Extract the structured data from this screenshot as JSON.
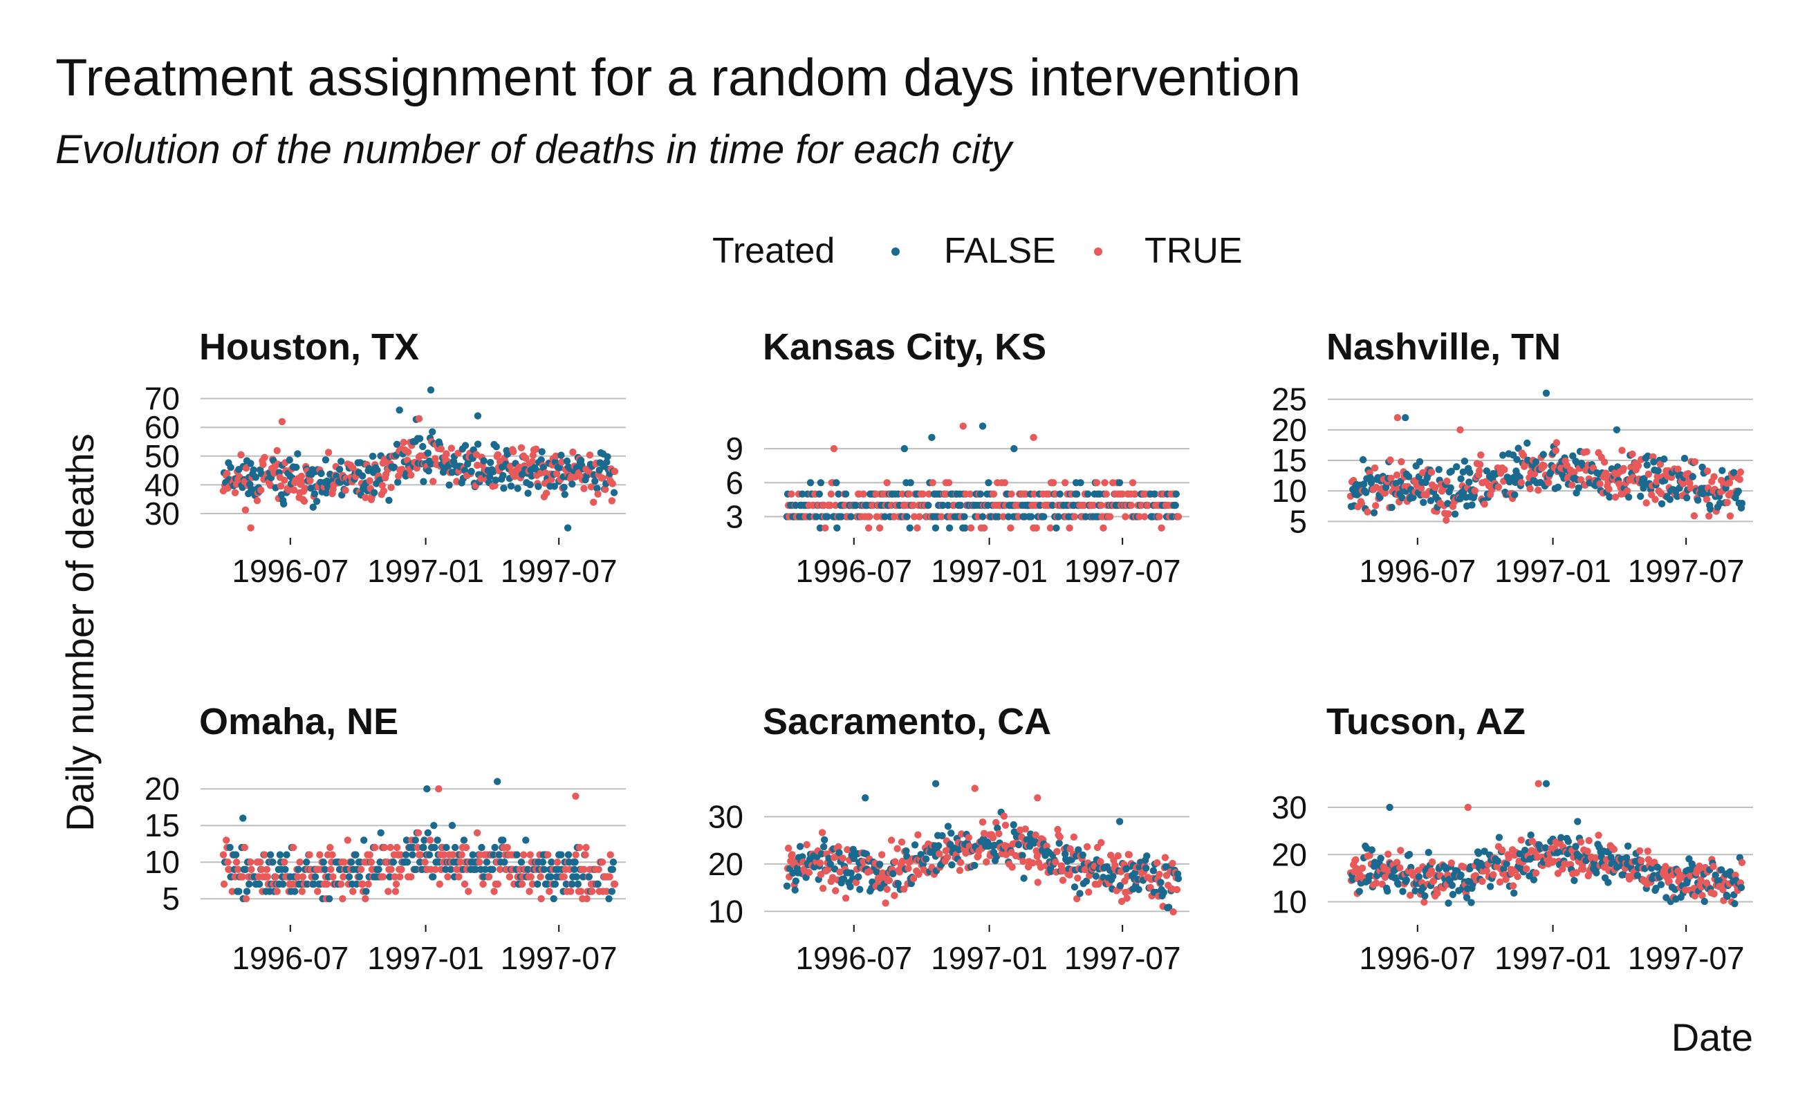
{
  "title": "Treatment assignment for a random days intervention",
  "subtitle": "Evolution of the number of deaths in time for each city",
  "ylabel": "Daily number of deaths",
  "xlabel": "Date",
  "legend": {
    "title": "Treated",
    "position": "top",
    "entries": [
      {
        "label": "FALSE",
        "color": "#1a6a90"
      },
      {
        "label": "TRUE",
        "color": "#e85a5a"
      }
    ]
  },
  "colors": {
    "FALSE": "#1a6a90",
    "TRUE": "#e85a5a",
    "grid": "#bdbdbd"
  },
  "chart_data": [
    {
      "type": "scatter",
      "panel": "Houston, TX",
      "x_range": [
        "1996-03-01",
        "1997-09-30"
      ],
      "x_ticks": [
        "1996-07",
        "1997-01",
        "1997-07"
      ],
      "ylim": [
        23,
        74
      ],
      "y_ticks": [
        30,
        40,
        50,
        60,
        70
      ],
      "level": [
        [
          0,
          43
        ],
        [
          0.25,
          40
        ],
        [
          0.4,
          43
        ],
        [
          0.5,
          52
        ],
        [
          0.6,
          47
        ],
        [
          0.75,
          45
        ],
        [
          1,
          43
        ]
      ],
      "spread": 6,
      "outliers": [
        [
          0.53,
          73
        ],
        [
          0.5,
          63
        ],
        [
          0.45,
          66
        ],
        [
          0.15,
          62
        ],
        [
          0.88,
          25
        ],
        [
          0.07,
          25
        ],
        [
          0.65,
          64
        ]
      ],
      "seed": 11
    },
    {
      "type": "scatter",
      "panel": "Kansas City, KS",
      "x_range": [
        "1996-03-01",
        "1997-09-30"
      ],
      "x_ticks": [
        "1996-07",
        "1997-01",
        "1997-07"
      ],
      "ylim": [
        1.5,
        12
      ],
      "y_ticks": [
        3,
        6,
        9
      ],
      "level": [
        [
          0,
          4
        ],
        [
          1,
          4
        ]
      ],
      "spread": 1.3,
      "integer": true,
      "min": 2,
      "outliers": [
        [
          0.5,
          11
        ],
        [
          0.45,
          11
        ],
        [
          0.37,
          10
        ],
        [
          0.63,
          10
        ],
        [
          0.3,
          9
        ],
        [
          0.12,
          9
        ],
        [
          0.58,
          9
        ]
      ],
      "seed": 23
    },
    {
      "type": "scatter",
      "panel": "Nashville, TN",
      "x_range": [
        "1996-03-01",
        "1997-09-30"
      ],
      "x_ticks": [
        "1996-07",
        "1997-01",
        "1997-07"
      ],
      "ylim": [
        3,
        27
      ],
      "y_ticks": [
        5,
        10,
        15,
        20,
        25
      ],
      "level": [
        [
          0,
          11
        ],
        [
          0.3,
          10
        ],
        [
          0.5,
          14
        ],
        [
          0.75,
          12
        ],
        [
          1,
          10
        ]
      ],
      "spread": 3,
      "min": 4,
      "outliers": [
        [
          0.5,
          26
        ],
        [
          0.12,
          22
        ],
        [
          0.14,
          22
        ],
        [
          0.28,
          20
        ],
        [
          0.68,
          20
        ]
      ],
      "seed": 37
    },
    {
      "type": "scatter",
      "panel": "Omaha, NE",
      "x_range": [
        "1996-03-01",
        "1997-09-30"
      ],
      "x_ticks": [
        "1996-07",
        "1997-01",
        "1997-07"
      ],
      "ylim": [
        2,
        22
      ],
      "y_ticks": [
        5,
        10,
        15,
        20
      ],
      "level": [
        [
          0,
          9
        ],
        [
          0.3,
          8
        ],
        [
          0.5,
          11
        ],
        [
          0.75,
          9
        ],
        [
          1,
          8
        ]
      ],
      "spread": 2.5,
      "integer": true,
      "min": 3,
      "outliers": [
        [
          0.52,
          20
        ],
        [
          0.55,
          20
        ],
        [
          0.7,
          21
        ],
        [
          0.9,
          19
        ],
        [
          0.05,
          16
        ]
      ],
      "seed": 41
    },
    {
      "type": "scatter",
      "panel": "Sacramento, CA",
      "x_range": [
        "1996-03-01",
        "1997-09-30"
      ],
      "x_ticks": [
        "1996-07",
        "1997-01",
        "1997-07"
      ],
      "ylim": [
        8,
        39
      ],
      "y_ticks": [
        10,
        20,
        30
      ],
      "level": [
        [
          0,
          21
        ],
        [
          0.25,
          18
        ],
        [
          0.4,
          22
        ],
        [
          0.5,
          25
        ],
        [
          0.65,
          22
        ],
        [
          0.8,
          18
        ],
        [
          1,
          17
        ]
      ],
      "spread": 4,
      "min": 9,
      "outliers": [
        [
          0.38,
          37
        ],
        [
          0.48,
          36
        ],
        [
          0.2,
          34
        ],
        [
          0.64,
          34
        ],
        [
          0.85,
          29
        ]
      ],
      "seed": 53
    },
    {
      "type": "scatter",
      "panel": "Tucson, AZ",
      "x_range": [
        "1996-03-01",
        "1997-09-30"
      ],
      "x_ticks": [
        "1996-07",
        "1997-01",
        "1997-07"
      ],
      "ylim": [
        6,
        37
      ],
      "y_ticks": [
        10,
        20,
        30
      ],
      "level": [
        [
          0,
          17
        ],
        [
          0.3,
          15
        ],
        [
          0.5,
          21
        ],
        [
          0.65,
          19
        ],
        [
          0.8,
          15
        ],
        [
          1,
          14
        ]
      ],
      "spread": 3.5,
      "min": 8,
      "outliers": [
        [
          0.5,
          35
        ],
        [
          0.48,
          35
        ],
        [
          0.1,
          30
        ],
        [
          0.3,
          30
        ],
        [
          0.58,
          27
        ]
      ],
      "seed": 67
    }
  ]
}
